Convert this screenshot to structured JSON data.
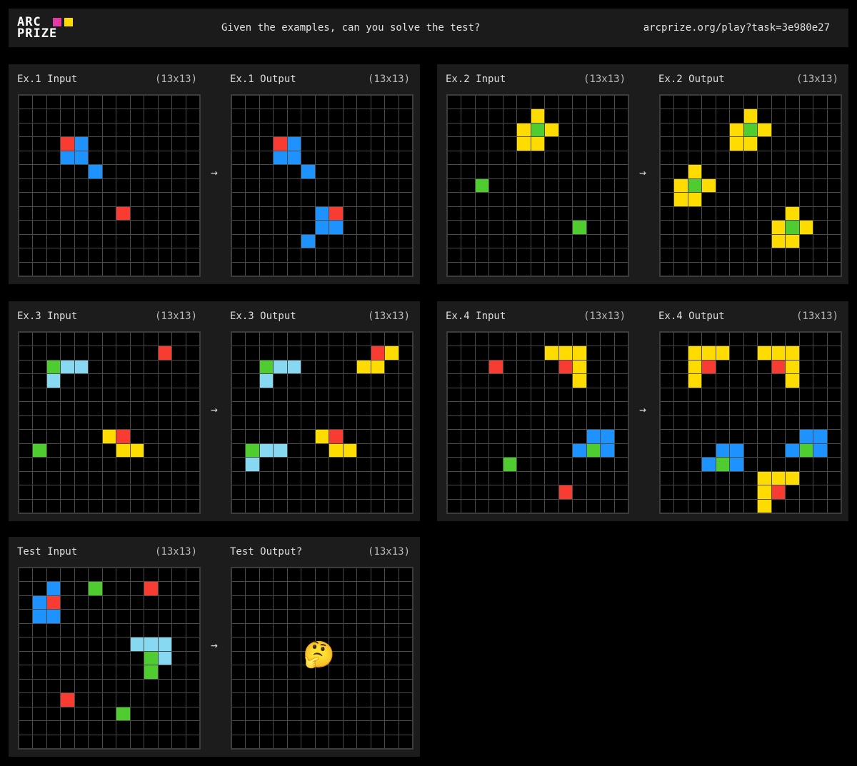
{
  "header": {
    "logo_line1": "ARC",
    "logo_line2": "PRIZE",
    "logo_colors": [
      "#e53aa3",
      "#ffdc00"
    ],
    "prompt": "Given the examples, can you solve the test?",
    "url": "arcprize.org/play?task=3e980e27"
  },
  "palette": {
    "0": "#000000",
    "1": "#1e93ff",
    "2": "#f93c31",
    "3": "#4fcc30",
    "4": "#ffdc00",
    "8": "#87d8f1"
  },
  "arrow": "→",
  "thinking_emoji": "🤔",
  "pairs": [
    {
      "input": {
        "label": "Ex.1 Input",
        "size": "(13x13)",
        "rows": [
          "0000000000000",
          "0000000000000",
          "0000000000000",
          "0002100000000",
          "0001100000000",
          "0000010000000",
          "0000000000000",
          "0000000000000",
          "0000000200000",
          "0000000000000",
          "0000000000000",
          "0000000000000",
          "0000000000000"
        ]
      },
      "output": {
        "label": "Ex.1 Output",
        "size": "(13x13)",
        "rows": [
          "0000000000000",
          "0000000000000",
          "0000000000000",
          "0002100000000",
          "0001100000000",
          "0000010000000",
          "0000000000000",
          "0000000000000",
          "0000001200000",
          "0000001100000",
          "0000010000000",
          "0000000000000",
          "0000000000000"
        ]
      }
    },
    {
      "input": {
        "label": "Ex.2 Input",
        "size": "(13x13)",
        "rows": [
          "0000000000000",
          "0000004000000",
          "0000043400000",
          "0000044000000",
          "0000000000000",
          "0000000000000",
          "0030000000000",
          "0000000000000",
          "0000000000000",
          "0000000003000",
          "0000000000000",
          "0000000000000",
          "0000000000000"
        ]
      },
      "output": {
        "label": "Ex.2 Output",
        "size": "(13x13)",
        "rows": [
          "0000000000000",
          "0000004000000",
          "0000043400000",
          "0000044000000",
          "0000000000000",
          "0040000000000",
          "0434000000000",
          "0440000000000",
          "0000000004000",
          "0000000043400",
          "0000000044000",
          "0000000000000",
          "0000000000000"
        ]
      }
    },
    {
      "input": {
        "label": "Ex.3 Input",
        "size": "(13x13)",
        "rows": [
          "0000000000000",
          "0000000000200",
          "0038800000000",
          "0080000000000",
          "0000000000000",
          "0000000000000",
          "0000000000000",
          "0000004200000",
          "0300000440000",
          "0000000000000",
          "0000000000000",
          "0000000000000",
          "0000000000000"
        ]
      },
      "output": {
        "label": "Ex.3 Output",
        "size": "(13x13)",
        "rows": [
          "0000000000000",
          "0000000000240",
          "0038800004400",
          "0080000000000",
          "0000000000000",
          "0000000000000",
          "0000000000000",
          "0000004200000",
          "0388000440000",
          "0800000000000",
          "0000000000000",
          "0000000000000",
          "0000000000000"
        ]
      }
    },
    {
      "input": {
        "label": "Ex.4 Input",
        "size": "(13x13)",
        "rows": [
          "0000000000000",
          "0000000444000",
          "0002000024000",
          "0000000004000",
          "0000000000000",
          "0000000000000",
          "0000000000000",
          "0000000000110",
          "0000000001310",
          "0000300000000",
          "0000000000000",
          "0000000020000",
          "0000000000000"
        ]
      },
      "output": {
        "label": "Ex.4 Output",
        "size": "(13x13)",
        "rows": [
          "0000000000000",
          "0044400444000",
          "0042000024000",
          "0040000004000",
          "0000000000000",
          "0000000000000",
          "0000000000000",
          "0000000000110",
          "0000110001310",
          "0001310000000",
          "0000000444000",
          "0000000420000",
          "0000000400000"
        ]
      }
    },
    {
      "input": {
        "label": "Test Input",
        "size": "(13x13)",
        "rows": [
          "0000000000000",
          "0010030002000",
          "0120000000000",
          "0110000000000",
          "0000000000000",
          "0000000088800",
          "0000000003800",
          "0000000003000",
          "0000000000000",
          "0002000000000",
          "0000000300000",
          "0000000000000",
          "0000000000000"
        ]
      },
      "output": {
        "label": "Test Output?",
        "size": "(13x13)",
        "rows": [
          "0000000000000",
          "0000000000000",
          "0000000000000",
          "0000000000000",
          "0000000000000",
          "0000000000000",
          "0000000000000",
          "0000000000000",
          "0000000000000",
          "0000000000000",
          "0000000000000",
          "0000000000000",
          "0000000000000"
        ]
      }
    }
  ]
}
